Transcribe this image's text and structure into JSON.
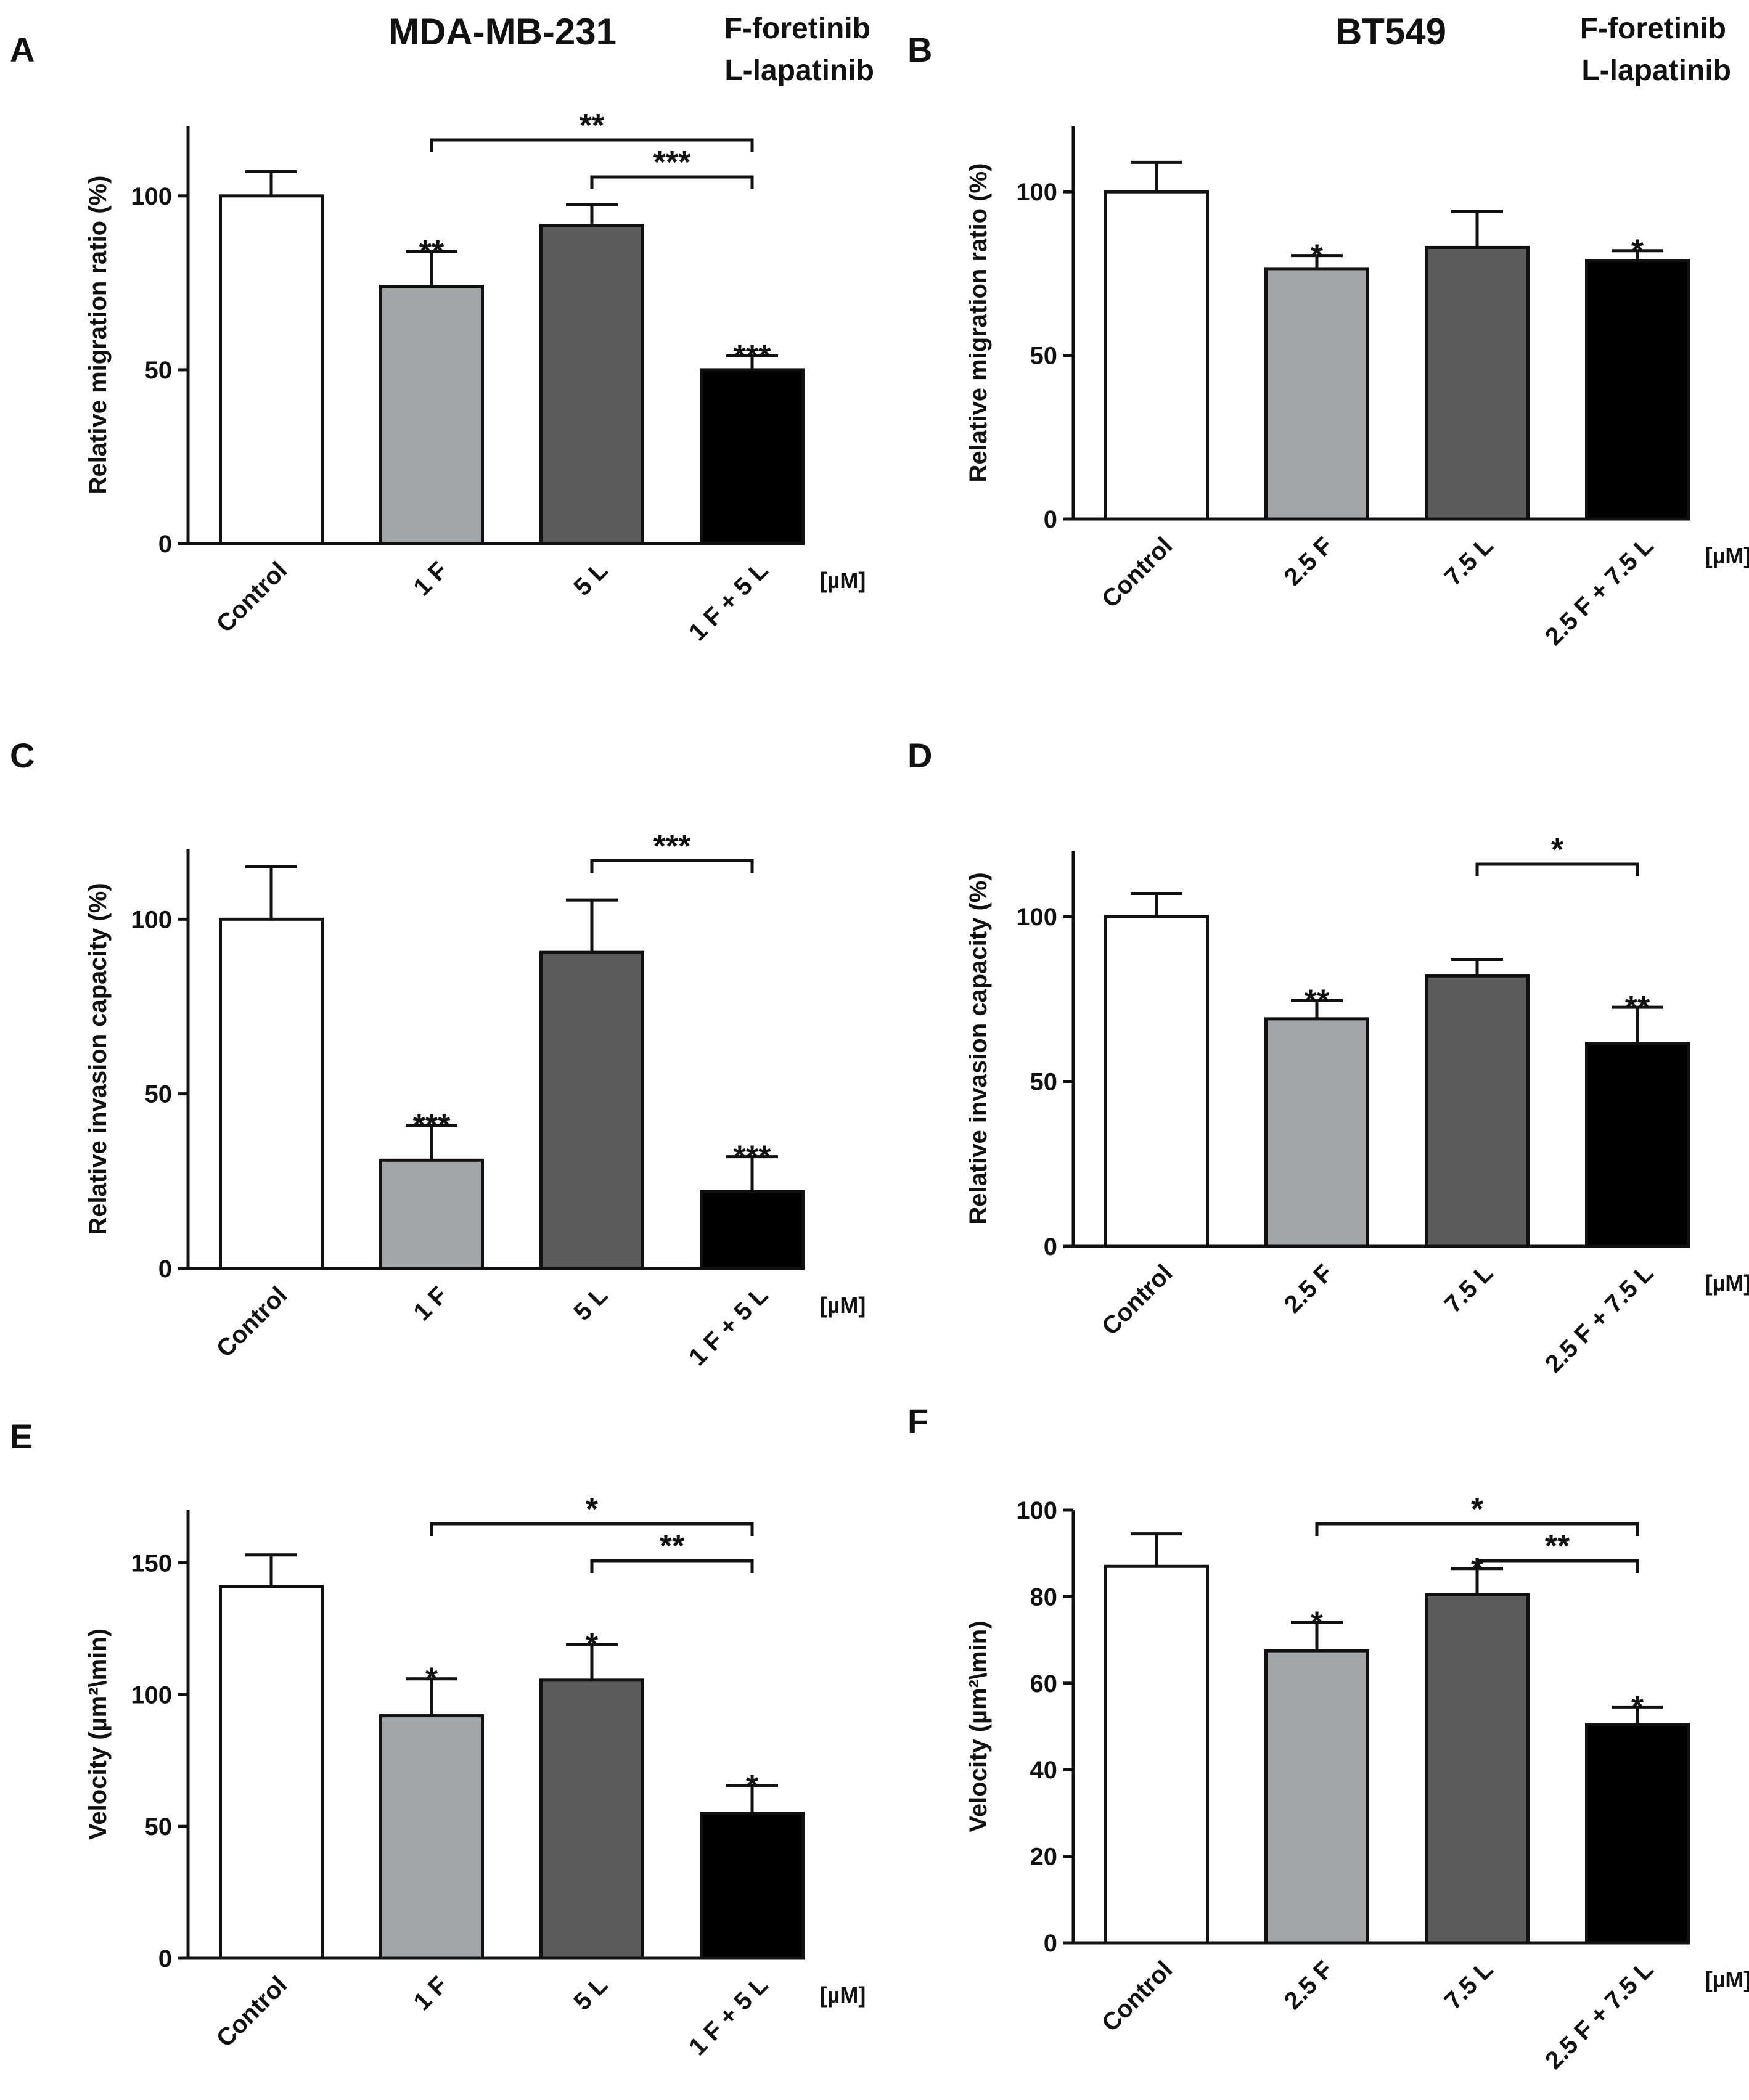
{
  "figure": {
    "title_left": "MDA-MB-231",
    "title_right": "BT549",
    "legend_left": [
      "F-foretinib",
      "L-lapatinib"
    ],
    "legend_right": [
      "F-foretinib",
      "L-lapatinib"
    ]
  },
  "colors": {
    "control": "#ffffff",
    "drug1": "#a3a5a8",
    "drug2": "#5c5c5c",
    "combo": "#000000"
  },
  "chart_data": [
    {
      "panel": "A",
      "type": "bar",
      "categories": [
        "Control",
        "1 F",
        "5 L",
        "1 F + 5 L"
      ],
      "values": [
        100,
        74,
        91.5,
        50
      ],
      "errors": [
        7,
        10,
        6,
        4
      ],
      "sig_labels": [
        "",
        "**",
        "",
        "***"
      ],
      "brackets": [
        {
          "from": 1,
          "to": 3,
          "label": "**"
        },
        {
          "from": 2,
          "to": 3,
          "label": "***"
        }
      ],
      "ylabel": "Relative migration ratio (%)",
      "ylim": [
        0,
        120
      ],
      "yticks": [
        0,
        50,
        100
      ],
      "unit_label": "[µM]"
    },
    {
      "panel": "B",
      "type": "bar",
      "categories": [
        "Control",
        "2.5 F",
        "7.5 L",
        "2.5 F + 7.5 L"
      ],
      "values": [
        100,
        76.5,
        83,
        79
      ],
      "errors": [
        9,
        4,
        11,
        3
      ],
      "sig_labels": [
        "",
        "*",
        "",
        "*"
      ],
      "brackets": [],
      "ylabel": "Relative migration ratio (%)",
      "ylim": [
        0,
        120
      ],
      "yticks": [
        0,
        50,
        100
      ],
      "unit_label": "[µM]"
    },
    {
      "panel": "C",
      "type": "bar",
      "categories": [
        "Control",
        "1 F",
        "5 L",
        "1 F + 5 L"
      ],
      "values": [
        100,
        31,
        90.5,
        22
      ],
      "errors": [
        15,
        10,
        15,
        10
      ],
      "sig_labels": [
        "",
        "***",
        "",
        "***"
      ],
      "brackets": [
        {
          "from": 2,
          "to": 3,
          "label": "***"
        }
      ],
      "ylabel": "Relative invasion capacity (%)",
      "ylim": [
        0,
        120
      ],
      "yticks": [
        0,
        50,
        100
      ],
      "unit_label": "[µM]"
    },
    {
      "panel": "D",
      "type": "bar",
      "categories": [
        "Control",
        "2.5 F",
        "7.5 L",
        "2.5 F + 7.5 L"
      ],
      "values": [
        100,
        69,
        82,
        61.5
      ],
      "errors": [
        7,
        5.5,
        5,
        11
      ],
      "sig_labels": [
        "",
        "**",
        "",
        "**"
      ],
      "brackets": [
        {
          "from": 2,
          "to": 3,
          "label": "*"
        }
      ],
      "ylabel": "Relative invasion capacity (%)",
      "ylim": [
        0,
        120
      ],
      "yticks": [
        0,
        50,
        100
      ],
      "unit_label": "[µM]"
    },
    {
      "panel": "E",
      "type": "bar",
      "categories": [
        "Control",
        "1 F",
        "5 L",
        "1 F + 5 L"
      ],
      "values": [
        141,
        92,
        105.5,
        55
      ],
      "errors": [
        12,
        14,
        13.5,
        10.5
      ],
      "sig_labels": [
        "",
        "*",
        "*",
        "*"
      ],
      "brackets": [
        {
          "from": 1,
          "to": 3,
          "label": "*"
        },
        {
          "from": 2,
          "to": 3,
          "label": "**"
        }
      ],
      "ylabel": "Velocity (µm²\\min)",
      "ylim": [
        0,
        170
      ],
      "yticks": [
        0,
        50,
        100,
        150
      ],
      "unit_label": "[µM]"
    },
    {
      "panel": "F",
      "type": "bar",
      "categories": [
        "Control",
        "2.5 F",
        "7.5 L",
        "2.5 F + 7.5 L"
      ],
      "values": [
        87,
        67.5,
        80.5,
        50.5
      ],
      "errors": [
        7.5,
        6.5,
        6,
        4
      ],
      "sig_labels": [
        "",
        "*",
        "*",
        "*"
      ],
      "brackets": [
        {
          "from": 1,
          "to": 3,
          "label": "*"
        },
        {
          "from": 2,
          "to": 3,
          "label": "**"
        }
      ],
      "ylabel": "Velocity (µm²\\min)",
      "ylim": [
        0,
        100
      ],
      "yticks": [
        0,
        20,
        40,
        60,
        80,
        100
      ],
      "unit_label": "[µM]"
    }
  ]
}
